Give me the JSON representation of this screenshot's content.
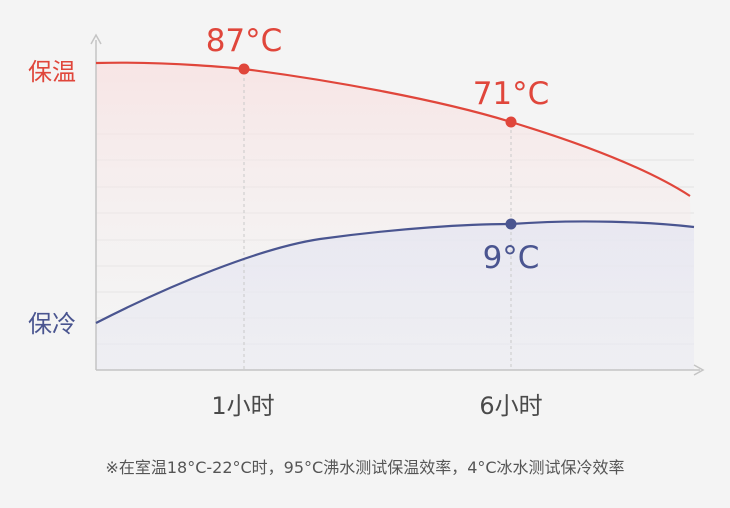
{
  "chart_data": {
    "type": "line",
    "categories": [
      "1小时",
      "6小时"
    ],
    "series": [
      {
        "name": "保温",
        "color": "#e0463b",
        "points": [
          {
            "x": "1小时",
            "value": 87,
            "label": "87°C"
          },
          {
            "x": "6小时",
            "value": 71,
            "label": "71°C"
          }
        ]
      },
      {
        "name": "保冷",
        "color": "#4a5590",
        "points": [
          {
            "x": "6小时",
            "value": 9,
            "label": "9°C"
          }
        ]
      }
    ],
    "y_axis_labels": [
      "保温",
      "保冷"
    ],
    "grid": true,
    "legend": "none"
  },
  "footnote": "※在室温18°C-22°C时，95°C沸水测试保温效率，4°C冰水测试保冷效率",
  "colors": {
    "hot": "#e0463b",
    "cold": "#4a5590",
    "axis": "#c4c4c4",
    "grid": "#e2e2e2",
    "label": "#4a4a4a"
  }
}
